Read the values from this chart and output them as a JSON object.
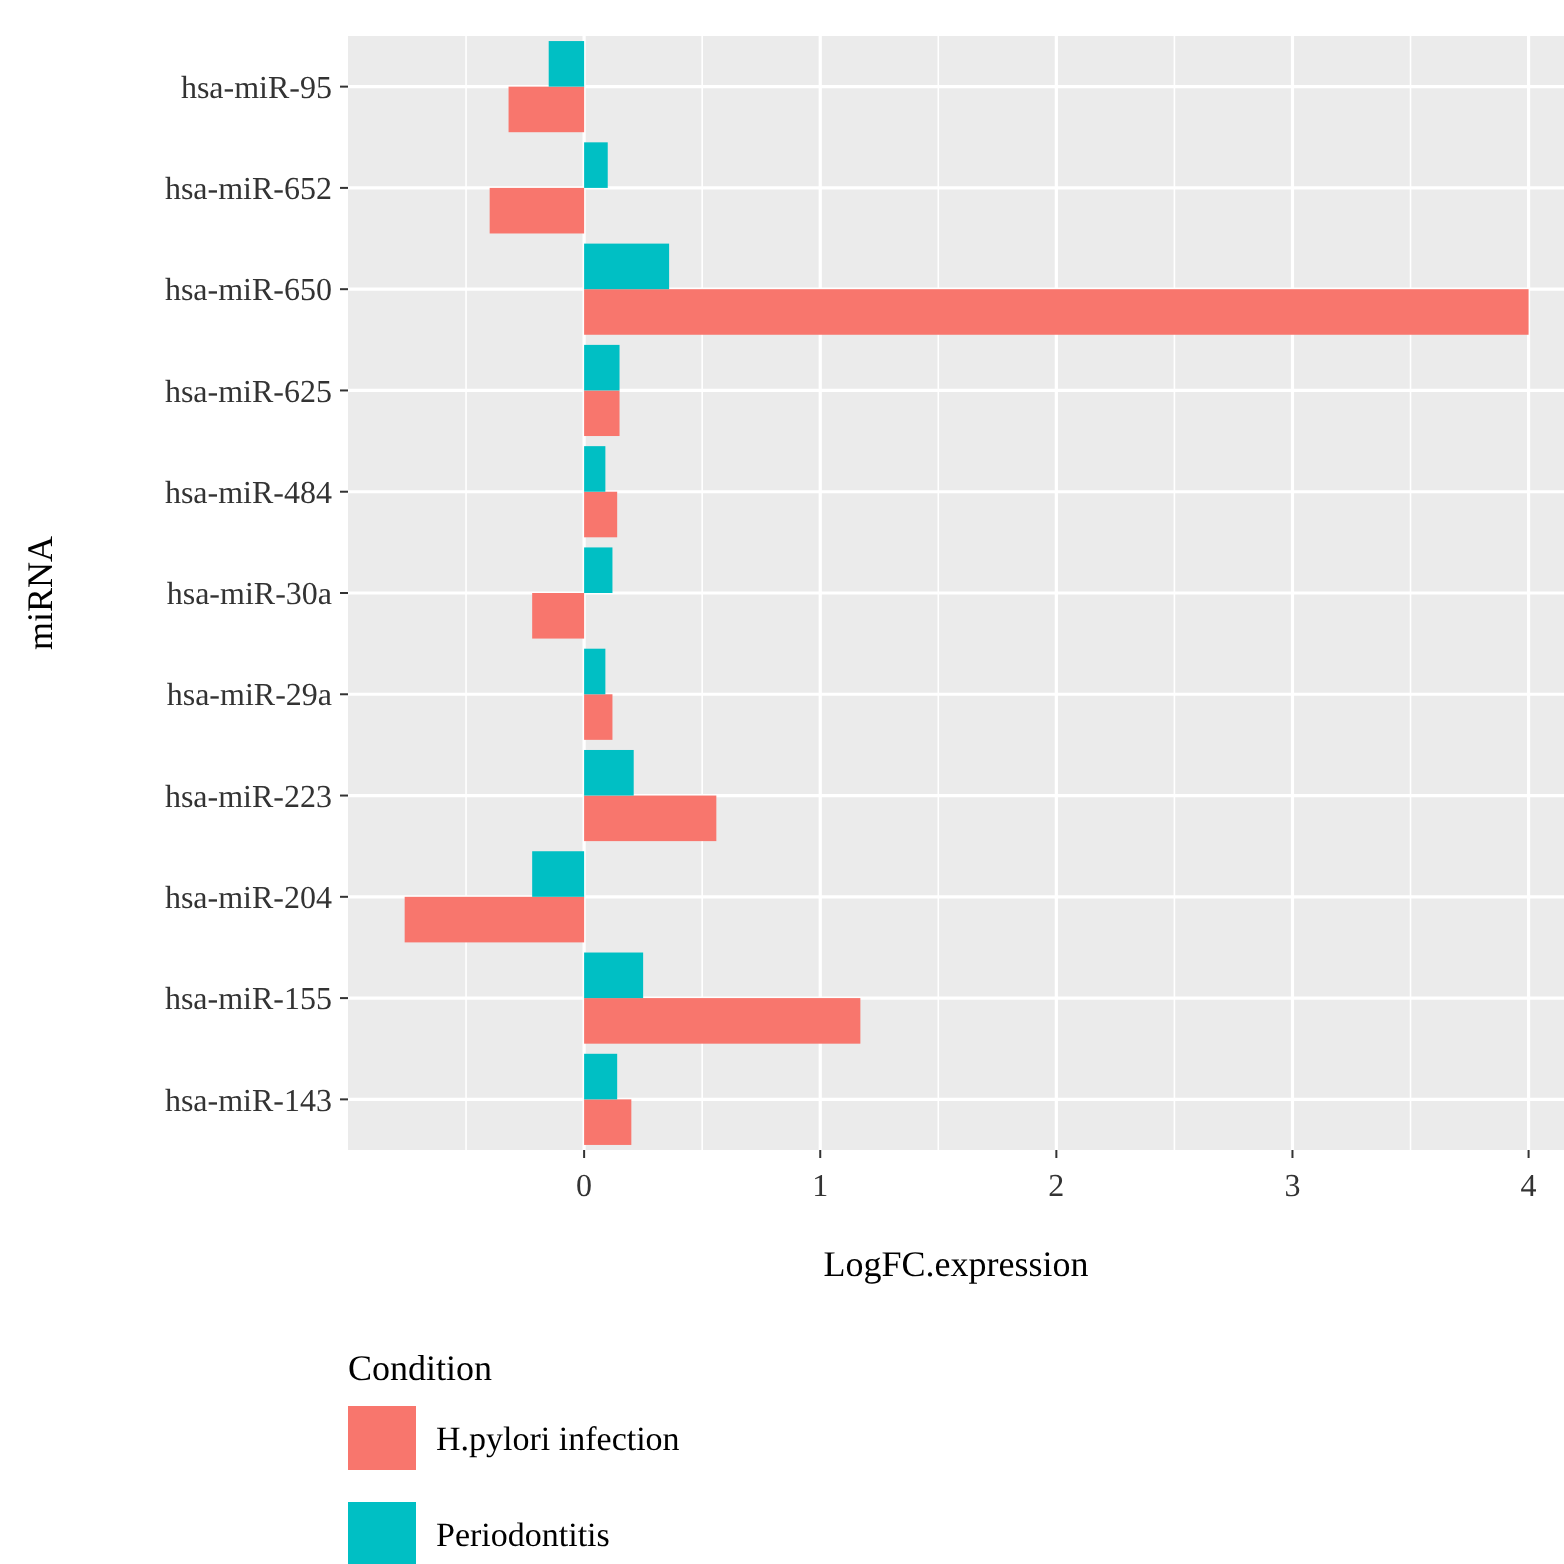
{
  "chart_data": {
    "type": "bar",
    "orientation": "horizontal",
    "xlabel": "LogFC.expression",
    "ylabel": "miRNA",
    "legend_title": "Condition",
    "categories": [
      "hsa-miR-95",
      "hsa-miR-652",
      "hsa-miR-650",
      "hsa-miR-625",
      "hsa-miR-484",
      "hsa-miR-30a",
      "hsa-miR-29a",
      "hsa-miR-223",
      "hsa-miR-204",
      "hsa-miR-155",
      "hsa-miR-143"
    ],
    "series": [
      {
        "name": "H.pylori infection",
        "color": "#f8766d",
        "values": [
          -0.32,
          -0.4,
          4.0,
          0.15,
          0.14,
          -0.22,
          0.12,
          0.56,
          -0.76,
          1.17,
          0.2
        ]
      },
      {
        "name": "Periodontitis",
        "color": "#00bfc4",
        "values": [
          -0.15,
          0.1,
          0.36,
          0.15,
          0.09,
          0.12,
          0.09,
          0.21,
          -0.22,
          0.25,
          0.14
        ]
      }
    ],
    "xlim": [
      -1,
      4.15
    ],
    "xticks": [
      0,
      1,
      2,
      3,
      4
    ],
    "grid": true,
    "legend": "bottom"
  }
}
